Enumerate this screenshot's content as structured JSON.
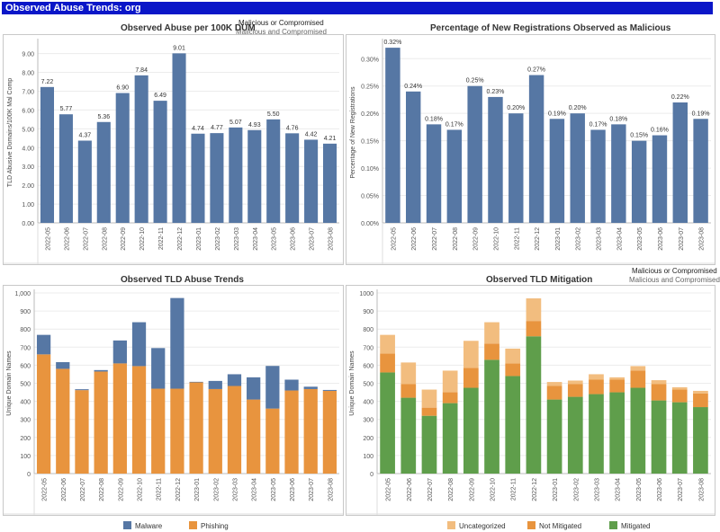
{
  "page_title": "Observed Abuse Trends: org",
  "colors": {
    "blue": "#5677a4",
    "orange": "#e8943e",
    "green": "#5f9e4b",
    "light_orange": "#f2bd7f"
  },
  "chart_data": [
    {
      "id": "abuse_per_100k",
      "type": "bar",
      "title": "Observed Abuse per 100K DUM",
      "legend_header": "Malicious or Compromised",
      "legend_value": "Malicious and Compromised",
      "ylabel": "TLD Abusive Domains/100K Mal Comp",
      "xlabel": "",
      "categories": [
        "2022-05",
        "2022-06",
        "2022-07",
        "2022-08",
        "2022-09",
        "2022-10",
        "2022-11",
        "2022-12",
        "2023-01",
        "2023-02",
        "2023-03",
        "2023-04",
        "2023-05",
        "2023-06",
        "2023-07",
        "2023-08"
      ],
      "values": [
        7.22,
        5.77,
        4.37,
        5.36,
        6.9,
        7.84,
        6.49,
        9.01,
        4.74,
        4.77,
        5.07,
        4.93,
        5.5,
        4.76,
        4.42,
        4.21
      ],
      "data_labels": [
        "7.22",
        "5.77",
        "4.37",
        "5.36",
        "6.90",
        "7.84",
        "6.49",
        "9.01",
        "4.74",
        "4.77",
        "5.07",
        "4.93",
        "5.50",
        "4.76",
        "4.42",
        "4.21"
      ],
      "ylim": [
        0,
        9.6
      ],
      "yticks": [
        0,
        1,
        2,
        3,
        4,
        5,
        6,
        7,
        8,
        9
      ],
      "ytick_labels": [
        "0.00",
        "1.00",
        "2.00",
        "3.00",
        "4.00",
        "5.00",
        "6.00",
        "7.00",
        "8.00",
        "9.00"
      ]
    },
    {
      "id": "pct_new_reg",
      "type": "bar",
      "title": "Percentage of New Registrations Observed as Malicious",
      "ylabel": "Percentage of New Registrations",
      "xlabel": "",
      "categories": [
        "2022-05",
        "2022-06",
        "2022-07",
        "2022-08",
        "2022-09",
        "2022-10",
        "2022-11",
        "2022-12",
        "2023-01",
        "2023-02",
        "2023-03",
        "2023-04",
        "2023-05",
        "2023-06",
        "2023-07",
        "2023-08"
      ],
      "values": [
        0.32,
        0.24,
        0.18,
        0.17,
        0.25,
        0.23,
        0.2,
        0.27,
        0.19,
        0.2,
        0.17,
        0.18,
        0.15,
        0.16,
        0.22,
        0.19
      ],
      "data_labels": [
        "0.32%",
        "0.24%",
        "0.18%",
        "0.17%",
        "0.25%",
        "0.23%",
        "0.20%",
        "0.27%",
        "0.19%",
        "0.20%",
        "0.17%",
        "0.18%",
        "0.15%",
        "0.16%",
        "0.22%",
        "0.19%"
      ],
      "ylim": [
        0,
        0.33
      ],
      "yticks": [
        0,
        0.05,
        0.1,
        0.15,
        0.2,
        0.25,
        0.3
      ],
      "ytick_labels": [
        "0.00%",
        "0.05%",
        "0.10%",
        "0.15%",
        "0.20%",
        "0.25%",
        "0.30%"
      ]
    },
    {
      "id": "tld_abuse_trends",
      "type": "bar",
      "stacked": true,
      "title": "Observed TLD Abuse Trends",
      "ylabel": "Unique Domain Names",
      "xlabel": "",
      "categories": [
        "2022-05",
        "2022-06",
        "2022-07",
        "2022-08",
        "2022-09",
        "2022-10",
        "2022-11",
        "2022-12",
        "2023-01",
        "2023-02",
        "2023-03",
        "2023-04",
        "2023-05",
        "2023-06",
        "2023-07",
        "2023-08"
      ],
      "series": [
        {
          "name": "Phishing",
          "color": "#e8943e",
          "values": [
            660,
            580,
            462,
            565,
            610,
            595,
            470,
            470,
            505,
            468,
            485,
            410,
            360,
            460,
            468,
            458
          ]
        },
        {
          "name": "Malware",
          "color": "#5677a4",
          "values": [
            108,
            37,
            5,
            8,
            127,
            243,
            225,
            502,
            3,
            45,
            65,
            123,
            236,
            60,
            13,
            5
          ]
        }
      ],
      "legend": [
        "Malware",
        "Phishing"
      ],
      "ylim": [
        0,
        1000
      ],
      "yticks": [
        0,
        100,
        200,
        300,
        400,
        500,
        600,
        700,
        800,
        900,
        1000
      ],
      "ytick_labels": [
        "0",
        "100",
        "200",
        "300",
        "400",
        "500",
        "600",
        "700",
        "800",
        "900",
        "1,000"
      ]
    },
    {
      "id": "tld_mitigation",
      "type": "bar",
      "stacked": true,
      "title": "Observed TLD Mitigation",
      "legend_header": "Malicious or Compromised",
      "legend_value": "Malicious and Compromised",
      "ylabel": "Unique Domain Names",
      "xlabel": "",
      "categories": [
        "2022-05",
        "2022-06",
        "2022-07",
        "2022-08",
        "2022-09",
        "2022-10",
        "2022-11",
        "2022-12",
        "2023-01",
        "2023-02",
        "2023-03",
        "2023-04",
        "2023-05",
        "2023-06",
        "2023-07",
        "2023-08"
      ],
      "series": [
        {
          "name": "Mitigated",
          "color": "#5f9e4b",
          "values": [
            560,
            420,
            320,
            390,
            475,
            630,
            540,
            760,
            410,
            425,
            440,
            450,
            475,
            405,
            395,
            368
          ]
        },
        {
          "name": "Not Mitigated",
          "color": "#e8943e",
          "values": [
            105,
            75,
            45,
            60,
            110,
            90,
            70,
            85,
            75,
            70,
            80,
            70,
            95,
            90,
            70,
            75
          ]
        },
        {
          "name": "Uncategorized",
          "color": "#f2bd7f",
          "values": [
            103,
            120,
            100,
            120,
            150,
            118,
            82,
            125,
            22,
            20,
            30,
            13,
            25,
            22,
            13,
            15
          ]
        }
      ],
      "legend": [
        "Uncategorized",
        "Not Mitigated",
        "Mitigated"
      ],
      "ylim": [
        0,
        1000
      ],
      "yticks": [
        0,
        100,
        200,
        300,
        400,
        500,
        600,
        700,
        800,
        900,
        1000
      ],
      "ytick_labels": [
        "0",
        "100",
        "200",
        "300",
        "400",
        "500",
        "600",
        "700",
        "800",
        "900",
        "1000"
      ]
    }
  ]
}
